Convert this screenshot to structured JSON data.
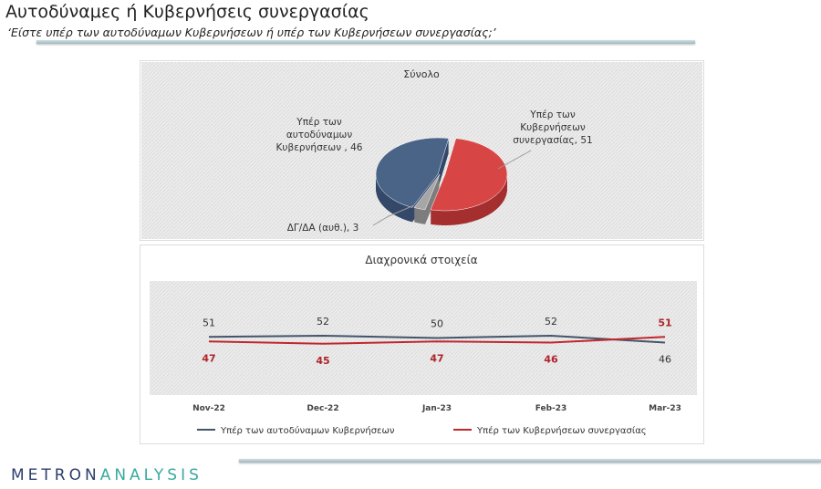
{
  "header": {
    "title": "Αυτοδύναμες ή Κυβερνήσεις συνεργασίας",
    "subtitle": "‘Είστε υπέρ των αυτοδύναμων Κυβερνήσεων ή υπέρ των Κυβερνήσεων συνεργασίας;’"
  },
  "logo": {
    "part1": "METRON",
    "part2": "ANALYSIS"
  },
  "colors": {
    "blue": "#44546a",
    "red": "#c0272d",
    "gray": "#a6a6a6",
    "bluePie": "#4a6487",
    "redPie": "#d84545"
  },
  "chart_data": [
    {
      "type": "pie",
      "title": "Σύνολο",
      "slices": [
        {
          "label": "Υπέρ των Κυβερνήσεων συνεργασίας",
          "label_lines": [
            "Υπέρ των",
            "Κυβερνήσεων",
            "συνεργασίας, 51"
          ],
          "value": 51
        },
        {
          "label": "ΔΓ/ΔΑ (αυθ.)",
          "label_lines": [
            "ΔΓ/ΔΑ (αυθ.), 3"
          ],
          "value": 3
        },
        {
          "label": "Υπέρ των αυτοδύναμων Κυβερνήσεων",
          "label_lines": [
            "Υπέρ των",
            "αυτοδύναμων",
            "Κυβερνήσεων , 46"
          ],
          "value": 46
        }
      ]
    },
    {
      "type": "line",
      "title": "Διαχρονικά στοιχεία",
      "categories": [
        "Nov-22",
        "Dec-22",
        "Jan-23",
        "Feb-23",
        "Mar-23"
      ],
      "ylim": [
        0,
        100
      ],
      "grid": true,
      "legend": "bottom",
      "series": [
        {
          "name": "Υπέρ των αυτοδύναμων Κυβερνήσεων",
          "values": [
            51,
            52,
            50,
            52,
            46
          ]
        },
        {
          "name": "Υπέρ των Κυβερνήσεων συνεργασίας",
          "values": [
            47,
            45,
            47,
            46,
            51
          ]
        }
      ]
    }
  ]
}
